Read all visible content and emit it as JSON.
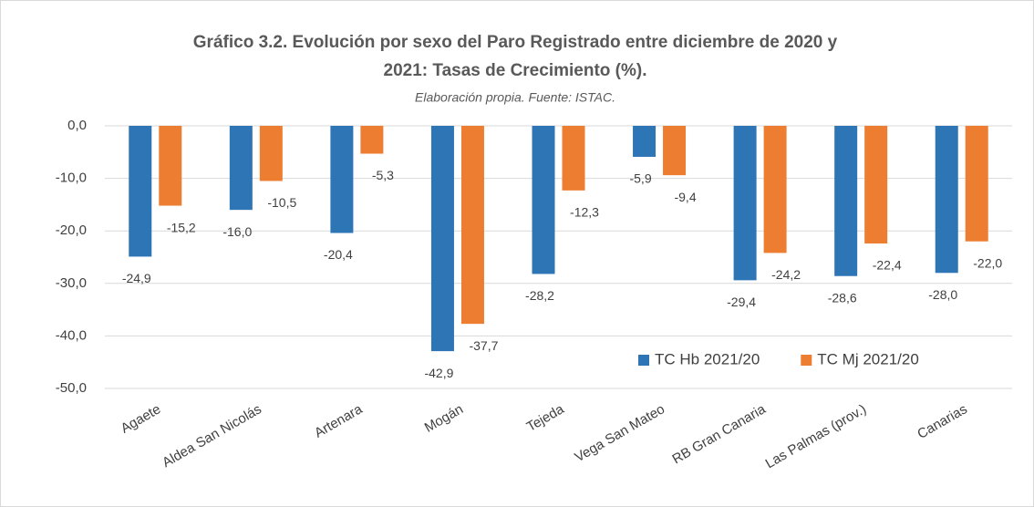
{
  "chart_data": {
    "type": "bar",
    "title": [
      "Gráfico 3.2. Evolución por sexo del Paro Registrado entre diciembre de 2020 y",
      "2021: Tasas de Crecimiento (%)."
    ],
    "subtitle": "Elaboración propia. Fuente: ISTAC.",
    "categories": [
      "Agaete",
      "Aldea San Nicolás",
      "Artenara",
      "Mogán",
      "Tejeda",
      "Vega San Mateo",
      "RB Gran Canaria",
      "Las Palmas (prov.)",
      "Canarias"
    ],
    "series": [
      {
        "name": "TC Hb 2021/20",
        "color": "#2e75b6",
        "values": [
          -24.9,
          -16.0,
          -20.4,
          -42.9,
          -28.2,
          -5.9,
          -29.4,
          -28.6,
          -28.0
        ],
        "value_labels": [
          "-24,9",
          "-16,0",
          "-20,4",
          "-42,9",
          "-28,2",
          "-5,9",
          "-29,4",
          "-28,6",
          "-28,0"
        ]
      },
      {
        "name": "TC Mj 2021/20",
        "color": "#ed7d31",
        "values": [
          -15.2,
          -10.5,
          -5.3,
          -37.7,
          -12.3,
          -9.4,
          -24.2,
          -22.4,
          -22.0
        ],
        "value_labels": [
          "-15,2",
          "-10,5",
          "-5,3",
          "-37,7",
          "-12,3",
          "-9,4",
          "-24,2",
          "-22,4",
          "-22,0"
        ]
      }
    ],
    "ylim": [
      -50,
      0
    ],
    "yticks": [
      {
        "value": 0,
        "label": "0,0"
      },
      {
        "value": -10,
        "label": "-10,0"
      },
      {
        "value": -20,
        "label": "-20,0"
      },
      {
        "value": -30,
        "label": "-30,0"
      },
      {
        "value": -40,
        "label": "-40,0"
      },
      {
        "value": -50,
        "label": "-50,0"
      }
    ],
    "grid": true,
    "legend": "lower right"
  }
}
